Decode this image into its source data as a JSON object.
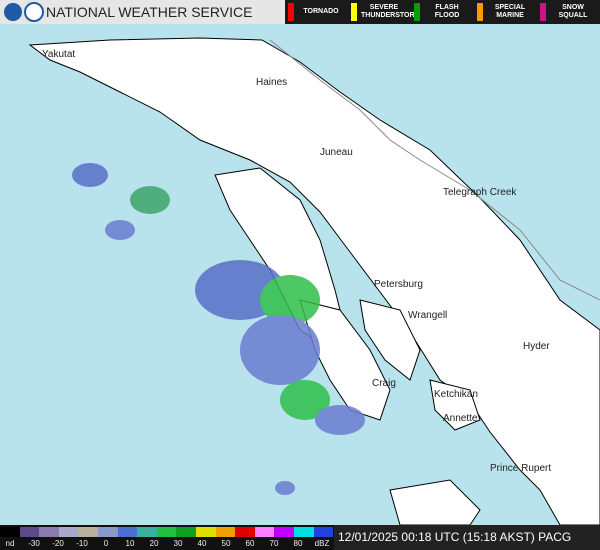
{
  "header": {
    "agency": "NATIONAL WEATHER SERVICE",
    "warnings": [
      {
        "label": "TORNADO",
        "color": "#ff0000"
      },
      {
        "label": "SEVERE THUNDERSTORM",
        "color": "#ffff00"
      },
      {
        "label": "FLASH FLOOD",
        "color": "#00a000"
      },
      {
        "label": "SPECIAL MARINE",
        "color": "#ff9900"
      },
      {
        "label": "SNOW SQUALL",
        "color": "#c71585"
      }
    ]
  },
  "map": {
    "places": [
      "Yakutat",
      "Haines",
      "Juneau",
      "Telegraph Creek",
      "Petersburg",
      "Wrangell",
      "Hyder",
      "Craig",
      "Ketchikan",
      "Annette",
      "Prince Rupert"
    ]
  },
  "scale": {
    "labels": [
      "nd",
      "-30",
      "-20",
      "-10",
      "0",
      "10",
      "20",
      "30",
      "40",
      "50",
      "60",
      "70",
      "80",
      "dBZ"
    ]
  },
  "timestamp": "12/01/2025 00:18 UTC (15:18 AKST) PACG"
}
